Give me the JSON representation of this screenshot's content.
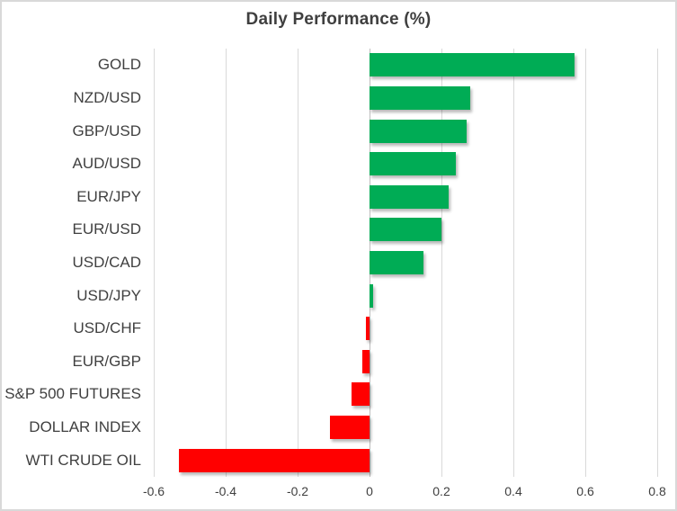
{
  "window": {
    "background": "#FFFFFF",
    "border_color": "#D9D9D9"
  },
  "chart_data": {
    "type": "bar",
    "orientation": "horizontal",
    "title": "Daily Performance (%)",
    "categories": [
      "GOLD",
      "NZD/USD",
      "GBP/USD",
      "AUD/USD",
      "EUR/JPY",
      "EUR/USD",
      "USD/CAD",
      "USD/JPY",
      "USD/CHF",
      "EUR/GBP",
      "S&P 500 FUTURES",
      "DOLLAR INDEX",
      "WTI CRUDE OIL"
    ],
    "values": [
      0.57,
      0.28,
      0.27,
      0.24,
      0.22,
      0.2,
      0.15,
      0.01,
      -0.01,
      -0.02,
      -0.05,
      -0.11,
      -0.53
    ],
    "xlabel": "",
    "ylabel": "",
    "xlim": [
      -0.6,
      0.8
    ],
    "xtick_values": [
      -0.6,
      -0.4,
      -0.2,
      0,
      0.2,
      0.4,
      0.6,
      0.8
    ],
    "xtick_labels": [
      "-0.6",
      "-0.4",
      "-0.2",
      "0",
      "0.2",
      "0.4",
      "0.6",
      "0.8"
    ],
    "grid": "vertical",
    "legend": "none",
    "positive_color": "#00AC55",
    "negative_color": "#FF0000",
    "gridline_color": "#D9D9D9",
    "zero_line_color": "#BFBFBF",
    "text_color": "#404040",
    "title_color": "#3F3F3F"
  }
}
